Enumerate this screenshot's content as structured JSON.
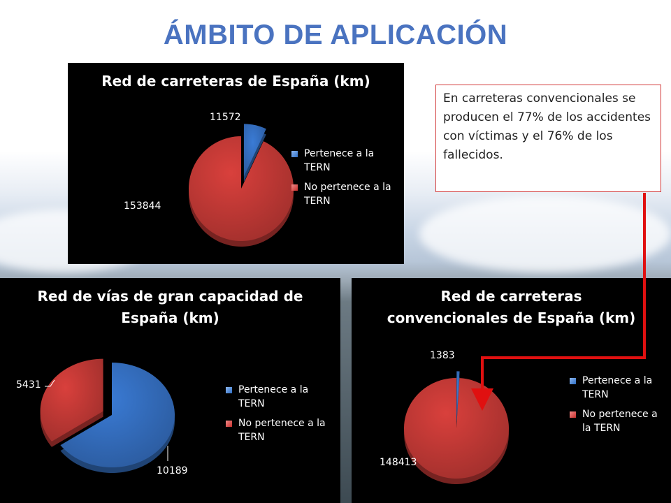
{
  "title": "ÁMBITO DE APLICACIÓN",
  "note": "En carreteras convencionales se producen el 77% de los accidentes con víctimas y el 76% de los fallecidos.",
  "colors": {
    "blue": "#3a7bd5",
    "red": "#d9403c",
    "title": "#4a73c0",
    "note_border": "#d23a3a",
    "arrow": "#e01010"
  },
  "chart_data": [
    {
      "type": "pie",
      "title": "Red de carreteras de España (km)",
      "categories": [
        "Pertenece a la TERN",
        "No pertenece a la TERN"
      ],
      "values": [
        11572,
        153844
      ],
      "data_labels": [
        "11572",
        "153844"
      ],
      "legend": [
        "Pertenece a la TERN",
        "No pertenece a la TERN"
      ],
      "legend_placement": "right",
      "exploded_slice": 0
    },
    {
      "type": "pie",
      "title": "Red de vías de gran capacidad de España (km)",
      "categories": [
        "Pertenece a la TERN",
        "No pertenece a la TERN"
      ],
      "values": [
        10189,
        5431
      ],
      "data_labels": [
        "10189",
        "5431"
      ],
      "legend": [
        "Pertenece a la TERN",
        "No pertenece a la TERN"
      ],
      "legend_placement": "right",
      "exploded_slice": 1
    },
    {
      "type": "pie",
      "title": "Red de carreteras convencionales de España (km)",
      "categories": [
        "Pertenece a la TERN",
        "No pertenece a la TERN"
      ],
      "values": [
        1383,
        148413
      ],
      "data_labels": [
        "1383",
        "148413"
      ],
      "legend": [
        "Pertenece a la TERN",
        "No pertenece a la TERN"
      ],
      "legend_placement": "right",
      "exploded_slice": 0
    }
  ]
}
